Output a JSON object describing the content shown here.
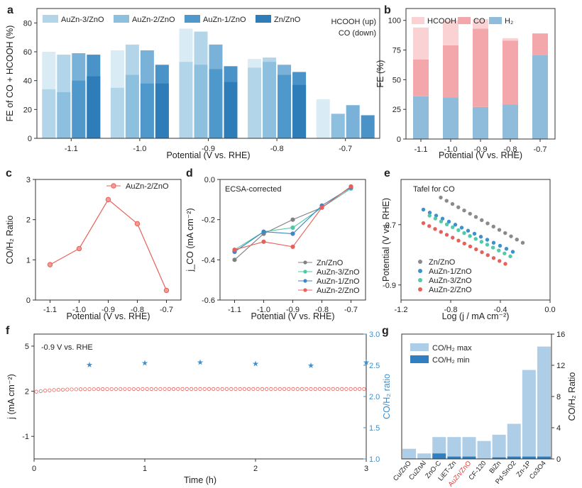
{
  "chart_data": [
    {
      "id": "a",
      "type": "bar",
      "xlabel": "Potential (V vs. RHE)",
      "ylabel": "FE of CO + HCOOH (%)",
      "ylim": [
        0,
        90
      ],
      "yticks": [
        0,
        20,
        40,
        60,
        80
      ],
      "categories": [
        "-1.1",
        "-1.0",
        "-0.9",
        "-0.8",
        "-0.7"
      ],
      "annotation": [
        "HCOOH (up)",
        "CO (down)"
      ],
      "series": [
        {
          "name": "AuZn-3/ZnO",
          "colors": [
            "#d9ebf5",
            "#b3d5ea"
          ],
          "co": [
            34,
            35,
            53,
            49,
            0
          ],
          "total": [
            60,
            61,
            76,
            55,
            27
          ]
        },
        {
          "name": "AuZn-2/ZnO",
          "colors": [
            "#b3d5ea",
            "#8dc0df"
          ],
          "co": [
            32,
            44,
            51,
            53,
            17
          ],
          "total": [
            58,
            65,
            74,
            56,
            17
          ]
        },
        {
          "name": "AuZn-1/ZnO",
          "colors": [
            "#79b1d8",
            "#4f98cb"
          ],
          "co": [
            40,
            38,
            48,
            44,
            0
          ],
          "total": [
            59,
            61,
            65,
            51,
            23
          ]
        },
        {
          "name": "Zn/ZnO",
          "colors": [
            "#4a93c8",
            "#2f7db8"
          ],
          "co": [
            43,
            38,
            39,
            37,
            0
          ],
          "total": [
            58,
            51,
            50,
            46,
            16
          ]
        }
      ]
    },
    {
      "id": "b",
      "type": "stacked-bar",
      "xlabel": "Potential (V vs. RHE)",
      "ylabel": "FE (%)",
      "ylim": [
        0,
        110
      ],
      "yticks": [
        0,
        25,
        50,
        75,
        100
      ],
      "categories": [
        "-1.1",
        "-1.0",
        "-0.9",
        "-0.8",
        "-0.7"
      ],
      "series": [
        {
          "name": "H2",
          "label": "H₂",
          "color": "#90bcdc",
          "values": [
            36,
            35,
            27,
            29,
            71
          ]
        },
        {
          "name": "CO",
          "label": "CO",
          "color": "#f4a7ab",
          "values": [
            31,
            44,
            66,
            54,
            18
          ]
        },
        {
          "name": "HCOOH",
          "label": "HCOOH",
          "color": "#fad2d4",
          "values": [
            27,
            21,
            8,
            2,
            0
          ]
        }
      ]
    },
    {
      "id": "c",
      "type": "line",
      "xlabel": "Potential (V vs. RHE)",
      "ylabel": "CO/H₂ Ratio",
      "xlim": [
        -1.15,
        -0.65
      ],
      "ylim": [
        0,
        3
      ],
      "xticks": [
        "-1.1",
        "-1.0",
        "-0.9",
        "-0.8",
        "-0.7"
      ],
      "yticks": [
        "0",
        "1",
        "2",
        "3"
      ],
      "series": [
        {
          "name": "AuZn-2/ZnO",
          "color": "#e8605a",
          "x": [
            -1.1,
            -1.0,
            -0.9,
            -0.8,
            -0.7
          ],
          "y": [
            0.88,
            1.28,
            2.5,
            1.9,
            0.24
          ]
        }
      ]
    },
    {
      "id": "d",
      "type": "line",
      "xlabel": "Potential (V vs. RHE)",
      "ylabel": "j_CO (mA cm⁻²)",
      "annotation": "ECSA-corrected",
      "xlim": [
        -1.15,
        -0.65
      ],
      "ylim": [
        -0.6,
        0.0
      ],
      "xticks": [
        "-1.1",
        "-1.0",
        "-0.9",
        "-0.8",
        "-0.7"
      ],
      "yticks": [
        "-0.6",
        "-0.4",
        "-0.2",
        "0.0"
      ],
      "x": [
        -1.1,
        -1.0,
        -0.9,
        -0.8,
        -0.7
      ],
      "series": [
        {
          "name": "Zn/ZnO",
          "color": "#808080",
          "y": [
            -0.4,
            -0.27,
            -0.2,
            -0.14,
            -0.035
          ]
        },
        {
          "name": "AuZn-3/ZnO",
          "color": "#4ec7a7",
          "y": [
            -0.35,
            -0.26,
            -0.24,
            -0.14,
            -0.045
          ]
        },
        {
          "name": "AuZn-1/ZnO",
          "color": "#3f86c4",
          "y": [
            -0.36,
            -0.26,
            -0.27,
            -0.13,
            -0.04
          ]
        },
        {
          "name": "AuZn-2/ZnO",
          "color": "#e8605a",
          "y": [
            -0.35,
            -0.31,
            -0.335,
            -0.14,
            -0.035
          ]
        }
      ]
    },
    {
      "id": "e",
      "type": "scatter",
      "title": "Tafel for CO",
      "xlabel": "Log (j / mA cm⁻²)",
      "ylabel": "Potential (V vs. RHE)",
      "xlim": [
        -1.2,
        0.0
      ],
      "ylim": [
        -0.95,
        -0.55
      ],
      "xticks": [
        "-1.2",
        "-0.8",
        "-0.4",
        "0.0"
      ],
      "yticks": [
        "-0.9",
        "-0.7"
      ],
      "series": [
        {
          "name": "Zn/ZnO",
          "color": "#8a8a8a",
          "x0": -0.88,
          "x1": -0.22,
          "y0": -0.61,
          "y1": -0.76,
          "n": 15
        },
        {
          "name": "AuZn-1/ZnO",
          "color": "#3f90cc",
          "x0": -1.02,
          "x1": -0.3,
          "y0": -0.65,
          "y1": -0.79,
          "n": 15
        },
        {
          "name": "AuZn-3/ZnO",
          "color": "#52c9a8",
          "x0": -0.97,
          "x1": -0.32,
          "y0": -0.67,
          "y1": -0.805,
          "n": 15
        },
        {
          "name": "AuZn-2/ZnO",
          "color": "#e8605a",
          "x0": -1.02,
          "x1": -0.36,
          "y0": -0.695,
          "y1": -0.83,
          "n": 15
        }
      ]
    },
    {
      "id": "f",
      "type": "scatter",
      "annotation": "-0.9 V vs. RHE",
      "xlabel": "Time (h)",
      "ylabel": "j (mA cm⁻²)",
      "y2label": "CO/H₂ ratio",
      "xlim": [
        0,
        3
      ],
      "ylim": [
        -2.5,
        5.8
      ],
      "y2lim": [
        1.0,
        3.0
      ],
      "xticks": [
        "0",
        "1",
        "2",
        "3"
      ],
      "yticks": [
        "-1",
        "2",
        "5"
      ],
      "y2ticks": [
        "1.0",
        "1.5",
        "2.0",
        "2.5",
        "3.0"
      ],
      "current": {
        "color": "#e8605a",
        "t_start": 0.02,
        "t_end": 2.98,
        "n": 75,
        "y_start": 1.95,
        "y_plateau": 2.15
      },
      "ratio": {
        "color": "#3f90cc",
        "t": [
          0.5,
          1.0,
          1.5,
          2.0,
          2.5,
          3.0
        ],
        "y": [
          2.51,
          2.54,
          2.55,
          2.53,
          2.5,
          2.55
        ]
      }
    },
    {
      "id": "g",
      "type": "bar",
      "ylabel": "CO/H₂ Ratio",
      "ylim": [
        0,
        16
      ],
      "yticks": [
        "0",
        "4",
        "8",
        "12",
        "16"
      ],
      "categories": [
        "Cu/ZnO",
        "CuZnAl",
        "ZnO-C",
        "LiET-Zn",
        "AuZn/ZnO",
        "CF-120",
        "BiZn",
        "Pd-SnO2",
        "Zn-1P",
        "Co3O4"
      ],
      "highlight": "AuZn/ZnO",
      "series": [
        {
          "name": "CO/H₂ max",
          "color": "#aecde6",
          "values": [
            1.3,
            0.7,
            2.8,
            2.8,
            2.8,
            2.3,
            3.1,
            4.5,
            11.4,
            14.4
          ]
        },
        {
          "name": "CO/H₂ min",
          "color": "#2f7fc1",
          "values": [
            0,
            0,
            0.7,
            0.3,
            0.3,
            0,
            0.2,
            0.3,
            0.3,
            0.3
          ]
        }
      ]
    }
  ],
  "panels": {
    "a": "a",
    "b": "b",
    "c": "c",
    "d": "d",
    "e": "e",
    "f": "f",
    "g": "g"
  }
}
